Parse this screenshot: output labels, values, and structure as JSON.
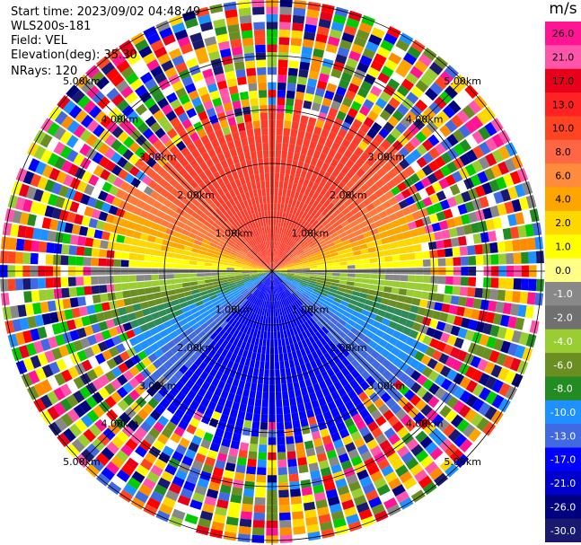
{
  "info": {
    "start_time": "Start time: 2023/09/02 04:48:49",
    "instrument": "WLS200s-181",
    "field": "Field: VEL",
    "elevation": "Elevation(deg): 35.30",
    "nrays": "NRays: 120"
  },
  "colorbar": {
    "unit": "m/s",
    "labels": [
      "26.0",
      "21.0",
      "17.0",
      "13.0",
      "10.0",
      "8.0",
      "6.0",
      "4.0",
      "2.0",
      "1.0",
      "0.0",
      "-1.0",
      "-2.0",
      "-4.0",
      "-6.0",
      "-8.0",
      "-10.0",
      "-13.0",
      "-17.0",
      "-21.0",
      "-26.0",
      "-30.0"
    ],
    "colors": [
      "#ff1493",
      "#ff55aa",
      "#e8001a",
      "#ff2222",
      "#ff4422",
      "#ff6644",
      "#ff8c3c",
      "#ffa500",
      "#ffd700",
      "#ffff00",
      "#ffff88",
      "#888888",
      "#707070",
      "#9acd32",
      "#6b8e23",
      "#228b22",
      "#1e90ff",
      "#4169e1",
      "#0000ff",
      "#0000cd",
      "#000080",
      "#191970"
    ]
  },
  "range_labels": [
    "1.00km",
    "2.00km",
    "3.00km",
    "4.00km",
    "5.00km"
  ],
  "field_legend": {
    "north_sector": "positive velocities (orange/red)",
    "south_sector": "negative velocities (blue)"
  }
}
